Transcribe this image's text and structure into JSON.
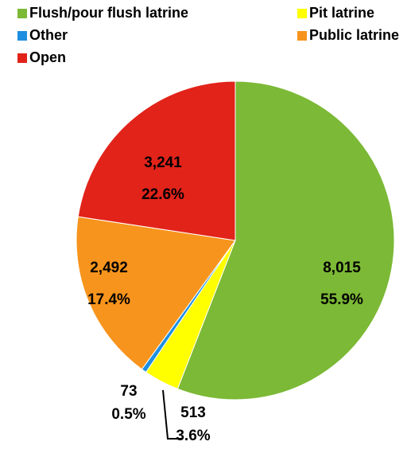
{
  "chart_data": {
    "type": "pie",
    "categories": [
      "Flush/pour flush latrine",
      "Pit latrine",
      "Other",
      "Public latrine",
      "Open"
    ],
    "values": [
      8015,
      513,
      73,
      2492,
      3241
    ],
    "value_labels": [
      "8,015",
      "513",
      "73",
      "2,492",
      "3,241"
    ],
    "percentages": [
      55.9,
      3.6,
      0.5,
      17.4,
      22.6
    ],
    "percentage_labels": [
      "55.9%",
      "3.6%",
      "0.5%",
      "17.4%",
      "22.6%"
    ],
    "colors": [
      "#7cb936",
      "#ffff00",
      "#1e8fe0",
      "#f7941d",
      "#e2231a"
    ],
    "legend": "top"
  }
}
